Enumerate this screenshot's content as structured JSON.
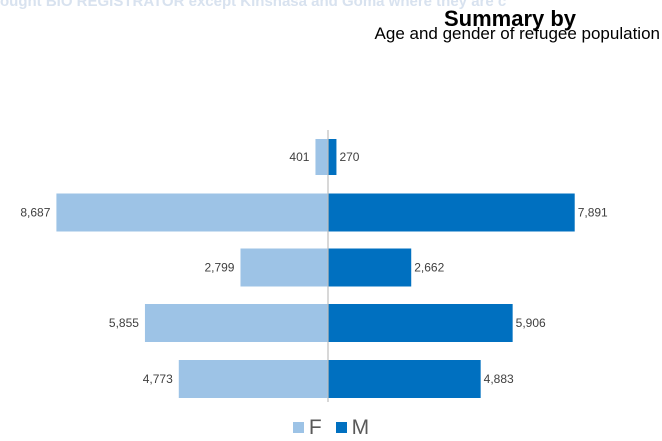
{
  "banner_text": "ought BIO REGISTRATOR except Kinshasa and Goma where they are c",
  "title": "Summary by",
  "subtitle": "Age and gender of refugee population",
  "colors": {
    "female": "#9dc3e6",
    "male": "#0070c0",
    "axis": "#bfbfbf",
    "label": "#404040"
  },
  "chart_data": {
    "type": "bar",
    "orientation": "horizontal",
    "layout": "population-pyramid",
    "categories": [
      "",
      "",
      "",
      "",
      ""
    ],
    "series": [
      {
        "name": "F",
        "values": [
          401,
          8687,
          2799,
          5855,
          4773
        ],
        "labels": [
          "401",
          "8,687",
          "2,799",
          "5,855",
          "4,773"
        ]
      },
      {
        "name": "M",
        "values": [
          270,
          7891,
          2662,
          5906,
          4883
        ],
        "labels": [
          "270",
          "7,891",
          "2,662",
          "5,906",
          "4,883"
        ]
      }
    ],
    "xlim": [
      -8700,
      8700
    ],
    "legend_position": "bottom",
    "grid": false
  }
}
